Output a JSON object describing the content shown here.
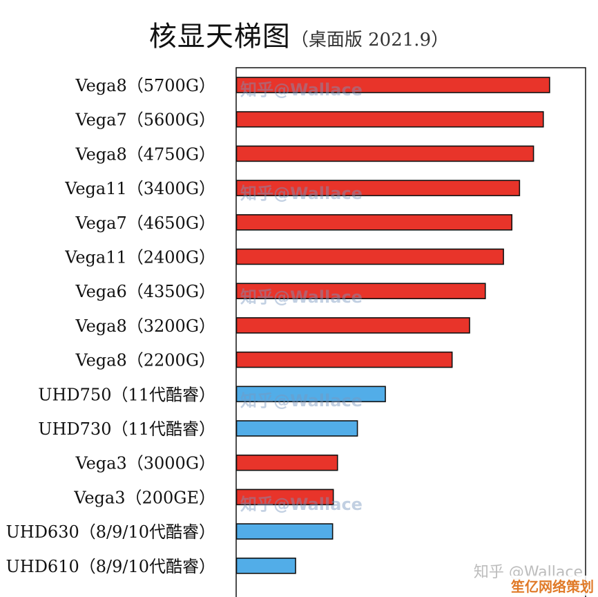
{
  "title": "核显天梯图",
  "subtitle": "（桌面版 2021.9）",
  "watermark": "知乎@Wallace",
  "footer_watermark": "知乎 @Wallace",
  "corner_watermark": "笙亿网络策划",
  "colors": {
    "amd": "#e8342a",
    "intel": "#52ade8",
    "border": "#111111"
  },
  "chart_data": {
    "type": "bar",
    "orientation": "horizontal",
    "title": "核显天梯图",
    "subtitle": "（桌面版 2021.9）",
    "xlabel": "",
    "ylabel": "",
    "xlim": [
      0,
      100
    ],
    "grid": false,
    "categories": [
      "Vega8（5700G）",
      "Vega7（5600G）",
      "Vega8（4750G）",
      "Vega11（3400G）",
      "Vega7（4650G）",
      "Vega11（2400G）",
      "Vega6（4350G）",
      "Vega8（3200G）",
      "Vega8（2200G）",
      "UHD750（11代酷睿）",
      "UHD730（11代酷睿）",
      "Vega3（3000G）",
      "Vega3（200GE）",
      "UHD630（8/9/10代酷睿）",
      "UHD610（8/9/10代酷睿）"
    ],
    "values": [
      89.6,
      87.8,
      85.0,
      81.0,
      78.8,
      76.4,
      71.2,
      66.7,
      61.7,
      42.6,
      34.6,
      28.9,
      27.7,
      27.5,
      16.9
    ],
    "bar_colors": [
      "amd",
      "amd",
      "amd",
      "amd",
      "amd",
      "amd",
      "amd",
      "amd",
      "amd",
      "intel",
      "intel",
      "amd",
      "amd",
      "intel",
      "intel"
    ]
  }
}
